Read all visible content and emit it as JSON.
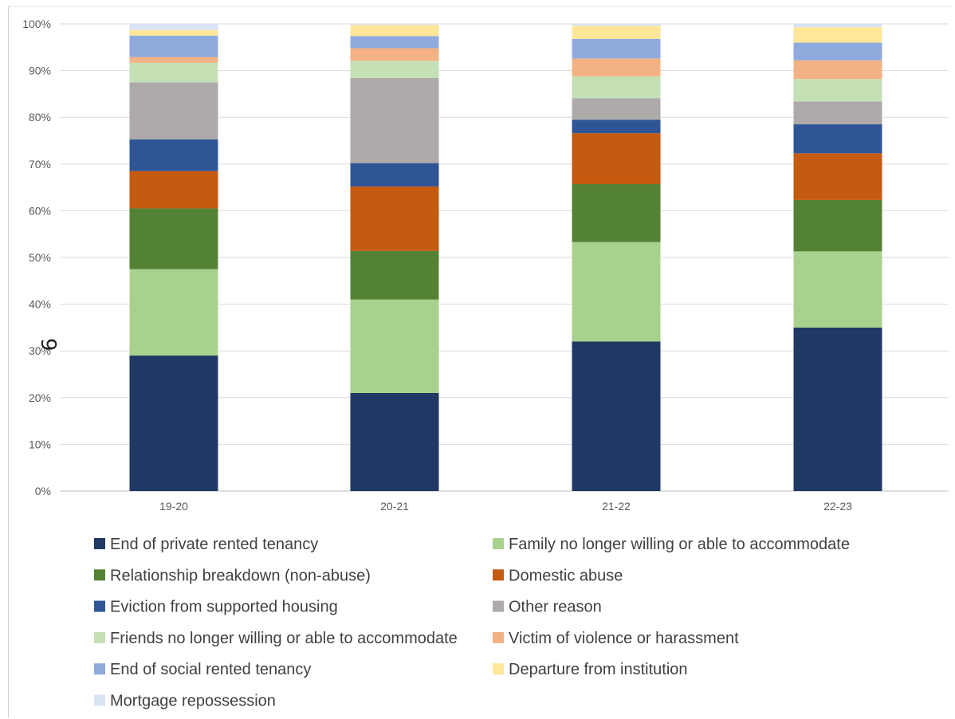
{
  "chart_data": {
    "type": "bar",
    "stacked": true,
    "percent": true,
    "categories": [
      "19-20",
      "20-21",
      "21-22",
      "22-23"
    ],
    "y_ticks": [
      "0%",
      "10%",
      "20%",
      "30%",
      "40%",
      "50%",
      "60%",
      "70%",
      "80%",
      "90%",
      "100%"
    ],
    "ylim": [
      0,
      100
    ],
    "grid": true,
    "legend_position": "bottom",
    "stray_mark": "9",
    "series": [
      {
        "name": "End of private rented tenancy",
        "color": "#203864",
        "values": [
          29,
          21,
          32,
          35
        ]
      },
      {
        "name": "Family no longer willing or able to accommodate",
        "color": "#a9d18e",
        "values": [
          18.5,
          20,
          21.3,
          16.3
        ]
      },
      {
        "name": "Relationship breakdown (non-abuse)",
        "color": "#548235",
        "values": [
          13,
          10.4,
          12.4,
          11
        ]
      },
      {
        "name": "Domestic abuse",
        "color": "#c55a11",
        "values": [
          8,
          13.8,
          10.9,
          10
        ]
      },
      {
        "name": "Eviction from supported housing",
        "color": "#2f5597",
        "values": [
          6.8,
          5,
          2.9,
          6.2
        ]
      },
      {
        "name": "Other reason",
        "color": "#aeaaaa",
        "values": [
          12.2,
          18.2,
          4.6,
          4.9
        ]
      },
      {
        "name": "Friends no longer willing or able to accommodate",
        "color": "#c5e0b4",
        "values": [
          4.2,
          3.7,
          4.7,
          4.8
        ]
      },
      {
        "name": "Victim of violence or harassment",
        "color": "#f4b183",
        "values": [
          1.2,
          2.7,
          3.8,
          4
        ]
      },
      {
        "name": "End of social rented tenancy",
        "color": "#8faadc",
        "values": [
          4.6,
          2.6,
          4.2,
          3.8
        ]
      },
      {
        "name": "Departure from institution",
        "color": "#ffe699",
        "values": [
          1.2,
          2.4,
          2.8,
          3.3
        ]
      },
      {
        "name": "Mortgage repossession",
        "color": "#dae3f3",
        "values": [
          1.3,
          0.2,
          0.4,
          0.7
        ]
      }
    ]
  }
}
